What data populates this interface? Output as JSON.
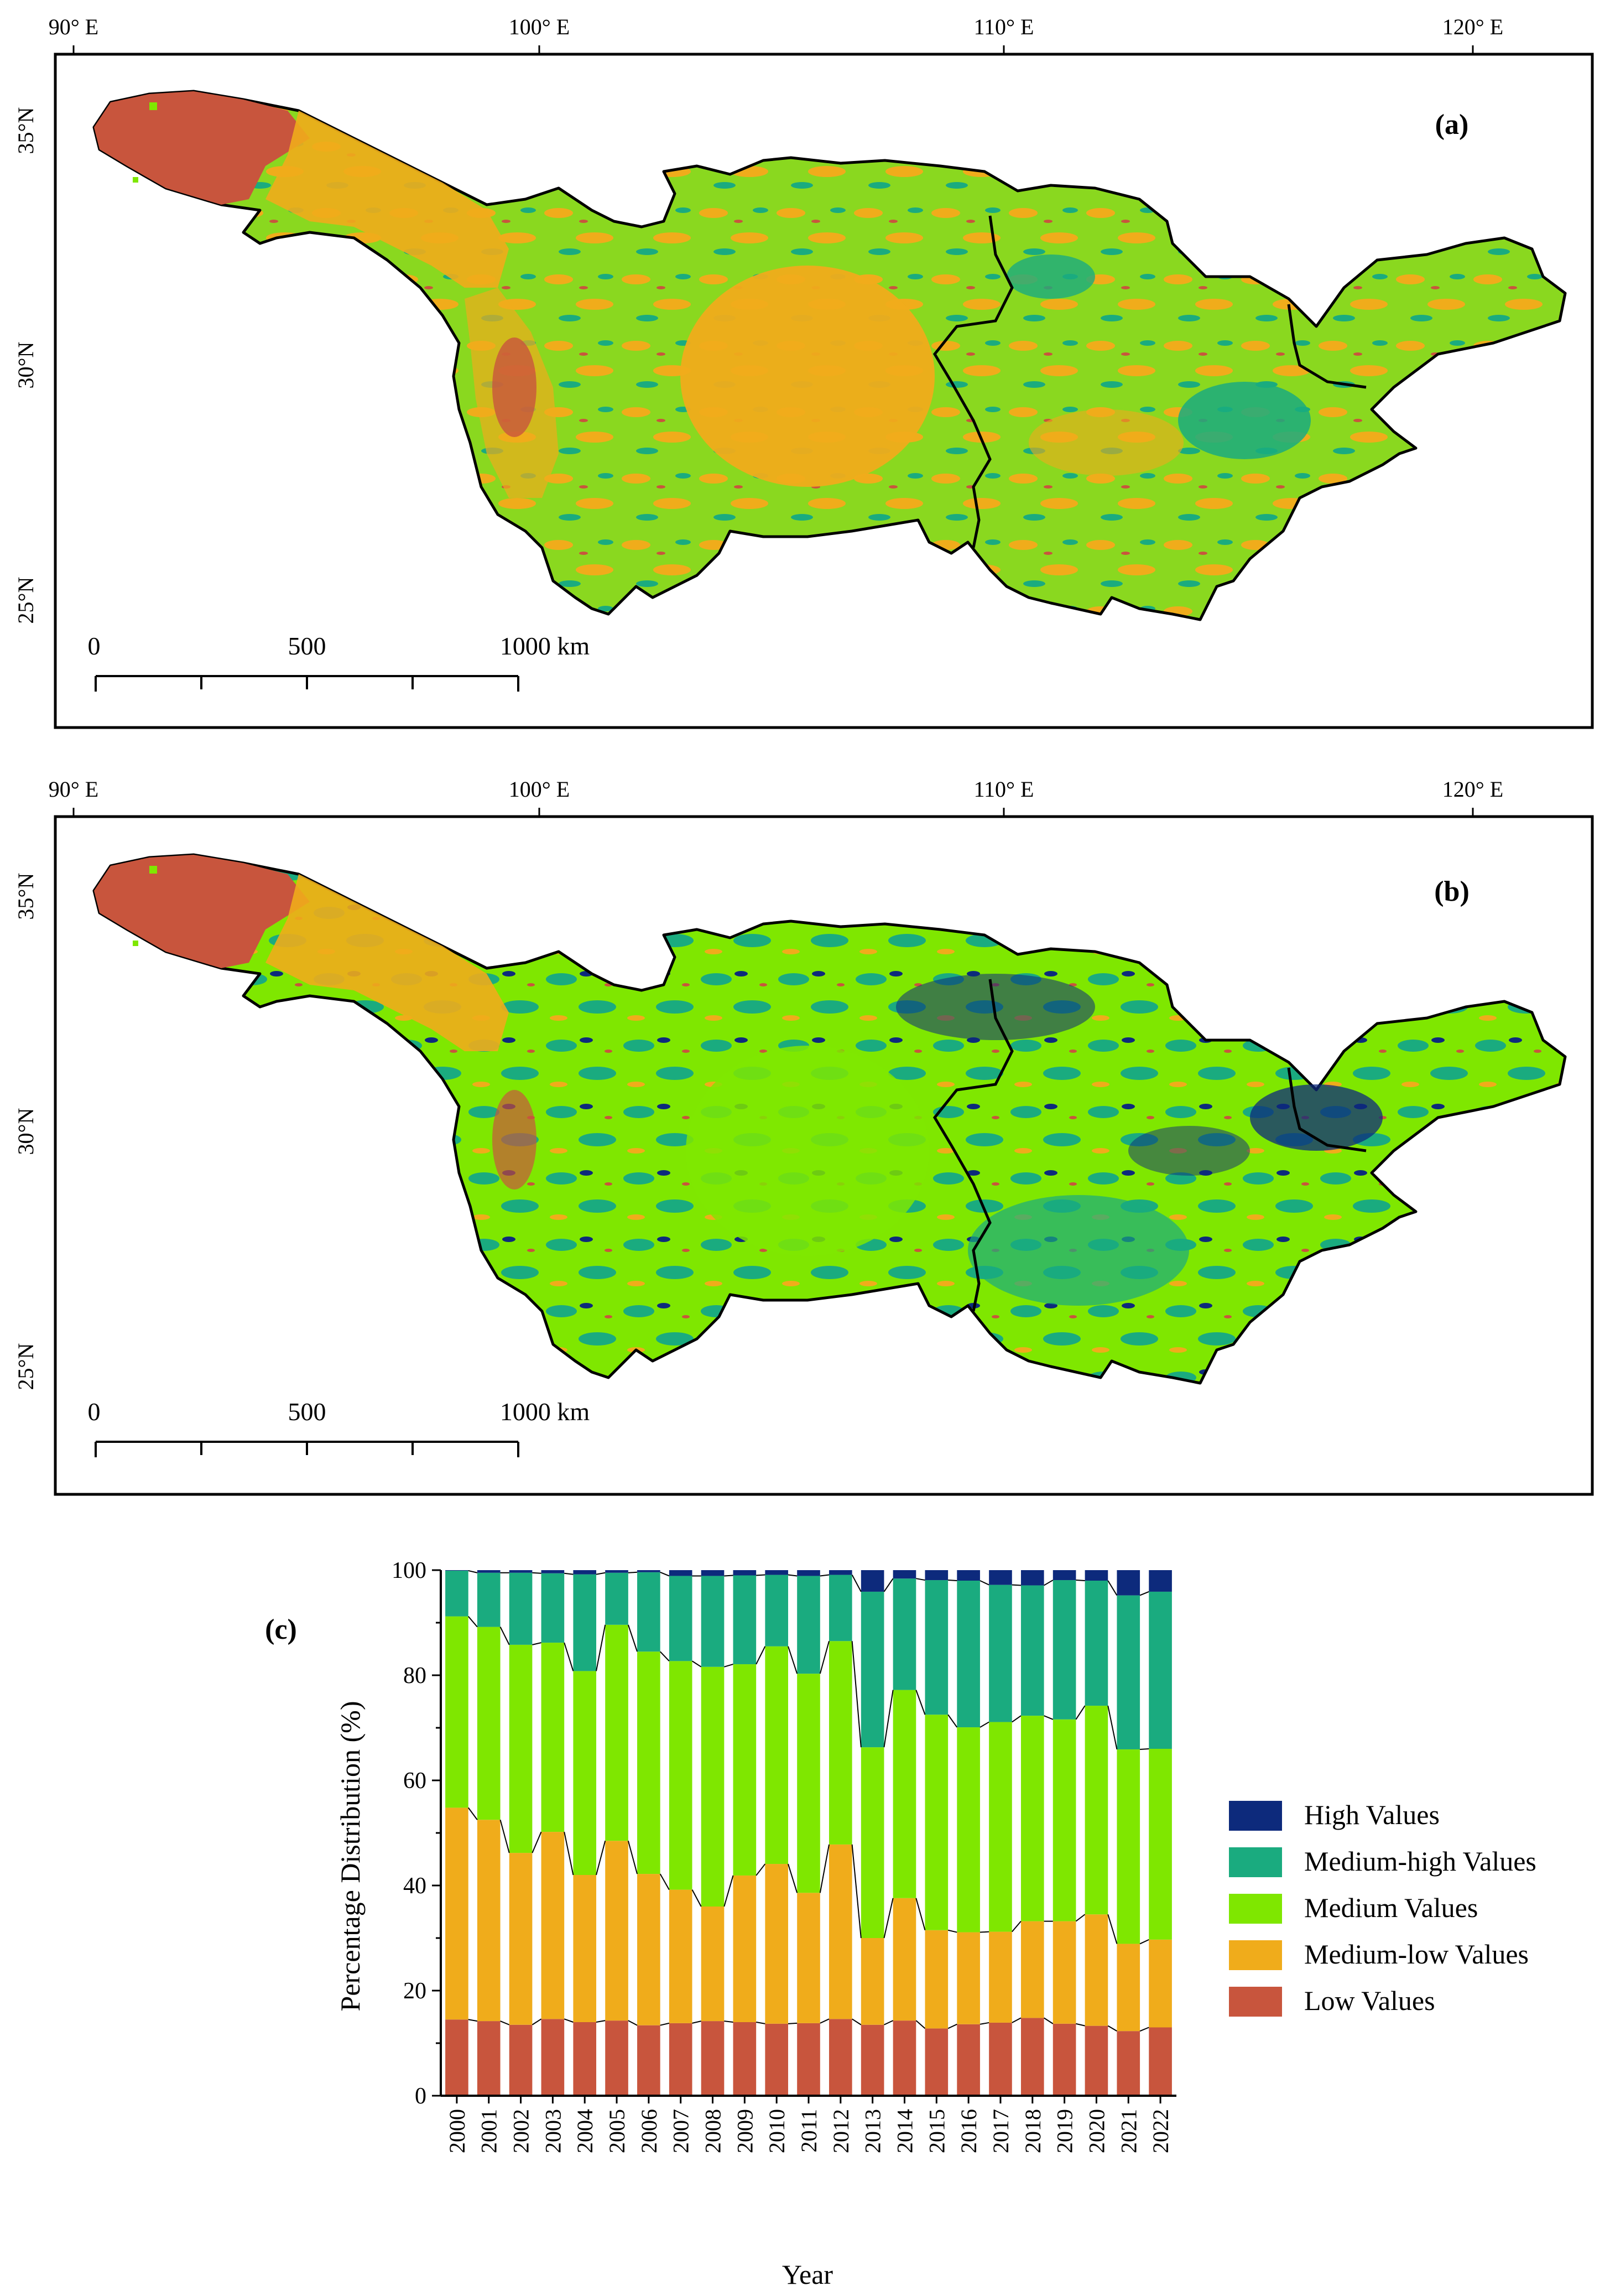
{
  "colors": {
    "high": "#0d2a7c",
    "medium_high": "#1aab7f",
    "medium": "#7fe700",
    "medium_low": "#f0ac1b",
    "low": "#c8553d"
  },
  "map_a": {
    "panel_label": "(a)",
    "lon_labels": [
      "90° E",
      "100° E",
      "110° E",
      "120° E"
    ],
    "lat_labels": [
      "35°N",
      "30°N",
      "25°N"
    ],
    "scale_labels": [
      "0",
      "500",
      "1000 km"
    ]
  },
  "map_b": {
    "panel_label": "(b)",
    "lon_labels": [
      "90° E",
      "100° E",
      "110° E",
      "120° E"
    ],
    "lat_labels": [
      "35°N",
      "30°N",
      "25°N"
    ],
    "scale_labels": [
      "0",
      "500",
      "1000 km"
    ]
  },
  "chart_data": {
    "type": "bar",
    "stacked": true,
    "panel_label": "(c)",
    "title": "",
    "xlabel": "Year",
    "ylabel": "Percentage Distribution (%)",
    "ylim": [
      0,
      100
    ],
    "yticks": [
      0,
      20,
      40,
      60,
      80,
      100
    ],
    "categories": [
      "2000",
      "2001",
      "2002",
      "2003",
      "2004",
      "2005",
      "2006",
      "2007",
      "2008",
      "2009",
      "2010",
      "2011",
      "2012",
      "2013",
      "2014",
      "2015",
      "2016",
      "2017",
      "2018",
      "2019",
      "2020",
      "2021",
      "2022"
    ],
    "series": [
      {
        "name": "Low Values",
        "color": "#c8553d",
        "values": [
          14.5,
          14.2,
          13.5,
          14.6,
          14.0,
          14.3,
          13.4,
          13.8,
          14.2,
          14.0,
          13.7,
          13.8,
          14.6,
          13.5,
          14.3,
          12.8,
          13.6,
          13.9,
          14.8,
          13.7,
          13.3,
          12.3,
          13.0
        ]
      },
      {
        "name": "Medium-low Values",
        "color": "#f0ac1b",
        "values": [
          40.3,
          38.3,
          32.7,
          35.6,
          28.0,
          34.2,
          28.8,
          25.4,
          21.8,
          27.9,
          30.4,
          24.8,
          33.2,
          16.5,
          23.3,
          18.7,
          17.5,
          17.3,
          18.4,
          19.5,
          21.2,
          16.6,
          16.7
        ]
      },
      {
        "name": "Medium Values",
        "color": "#7fe700",
        "values": [
          36.4,
          36.7,
          39.6,
          36.0,
          38.8,
          41.1,
          42.3,
          43.5,
          45.6,
          40.2,
          41.4,
          41.7,
          38.7,
          36.3,
          39.6,
          41.0,
          39.0,
          39.9,
          39.1,
          38.4,
          39.7,
          37.0,
          36.3
        ]
      },
      {
        "name": "Medium-high Values",
        "color": "#1aab7f",
        "values": [
          8.7,
          10.3,
          13.7,
          13.2,
          18.4,
          9.9,
          15.1,
          16.2,
          17.3,
          16.9,
          13.6,
          18.6,
          12.6,
          29.6,
          21.2,
          25.6,
          27.9,
          26.1,
          24.8,
          26.5,
          23.8,
          29.3,
          29.9
        ]
      },
      {
        "name": "High Values",
        "color": "#0d2a7c",
        "values": [
          0.1,
          0.5,
          0.5,
          0.6,
          0.8,
          0.5,
          0.4,
          1.1,
          1.1,
          1.0,
          0.9,
          1.1,
          0.9,
          4.1,
          1.6,
          1.9,
          2.0,
          2.8,
          2.9,
          1.9,
          2.0,
          4.8,
          4.1
        ]
      }
    ],
    "legend_order": [
      "High Values",
      "Medium-high Values",
      "Medium Values",
      "Medium-low Values",
      "Low Values"
    ],
    "legend_position": "right"
  }
}
